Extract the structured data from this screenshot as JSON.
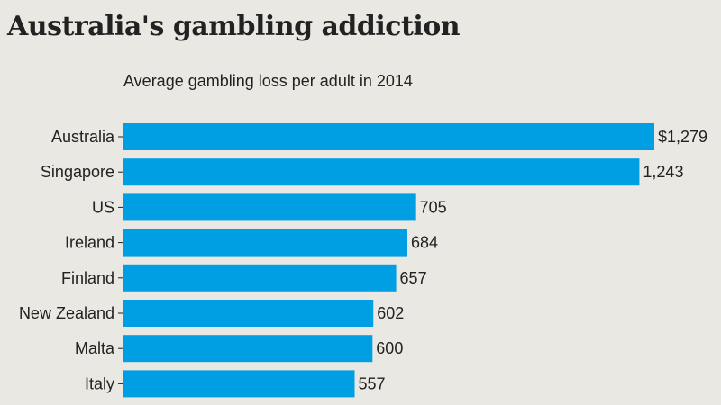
{
  "chart_data": {
    "type": "bar",
    "orientation": "horizontal",
    "title": "Australia's gambling addiction",
    "subtitle": "Average gambling loss per adult in 2014",
    "categories": [
      "Australia",
      "Singapore",
      "US",
      "Ireland",
      "Finland",
      "New Zealand",
      "Malta",
      "Italy"
    ],
    "values": [
      1279,
      1243,
      705,
      684,
      657,
      602,
      600,
      557
    ],
    "value_labels": [
      "$1,279",
      "1,243",
      "705",
      "684",
      "657",
      "602",
      "600",
      "557"
    ],
    "xlim": [
      0,
      1279
    ],
    "grid": false,
    "legend": "none",
    "colors": {
      "bar": "#009fe3",
      "text": "#222222",
      "background": "#e9e8e2"
    }
  }
}
